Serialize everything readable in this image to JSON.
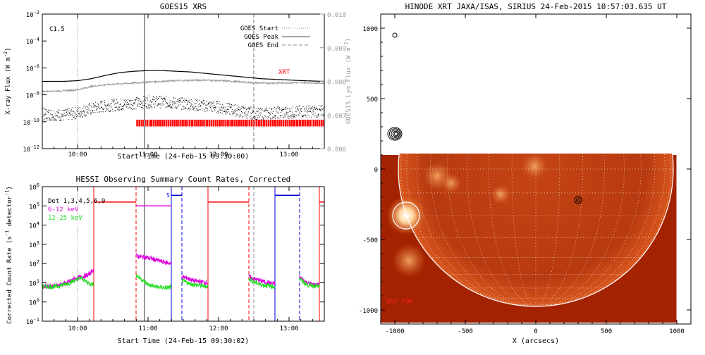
{
  "colors": {
    "red": "#ff0000",
    "magenta": "#dd00dd",
    "green": "#22dd22",
    "blue": "#0000dd",
    "black": "#000000",
    "gray": "#999999",
    "sun_dark": "#a32200",
    "sun_mid": "#c8400e",
    "sun_bright": "#ffe0b0"
  },
  "chart_data": [
    {
      "type": "line",
      "title": "GOES15 XRS",
      "xlabel": "Start Time (24-Feb-15 09:30:00)",
      "ylabel": "X-ray Flux (W m",
      "ylabel_sup": "-2",
      "ylabel_close": ")",
      "ylabel_right": "GOES15 Lyα Flux (W m",
      "ylabel_right_sup": "-2",
      "ylabel_right_close": ")",
      "flare_class": "C1.5",
      "x_ticks": [
        "10:00",
        "11:00",
        "12:00",
        "13:00"
      ],
      "x_tick_hours": [
        10,
        11,
        12,
        13
      ],
      "xlim_hours": [
        9.5,
        13.5
      ],
      "y_ticks_exp": [
        "-2",
        "-4",
        "-6",
        "-8",
        "-10",
        "-12"
      ],
      "y_ticks_base": "10",
      "ylim_log10": [
        -12,
        -2
      ],
      "y_right_ticks": [
        "0.010",
        "0.009",
        "0.008",
        "0.007",
        "0.006"
      ],
      "y_right_lim": [
        0.006,
        0.01
      ],
      "legend": [
        {
          "label": "GOES Start",
          "style": "dotted"
        },
        {
          "label": "GOES Peak",
          "style": "solid"
        },
        {
          "label": "GOES End",
          "style": "dashed"
        }
      ],
      "legend_position": "top-right",
      "goes_start_hour": 10.0,
      "goes_peak_hour": 10.95,
      "goes_end_hour": 12.5,
      "xrt_label": "XRT",
      "xrt_coverage_hours": [
        10.83,
        13.5
      ],
      "series": [
        {
          "name": "1-8 Å (black)",
          "x": [
            9.5,
            9.8,
            10.0,
            10.2,
            10.4,
            10.6,
            10.8,
            11.0,
            11.2,
            11.4,
            11.6,
            11.8,
            12.0,
            12.2,
            12.4,
            12.6,
            12.8,
            13.0,
            13.2,
            13.5
          ],
          "log10_values": [
            -7.0,
            -7.0,
            -6.95,
            -6.8,
            -6.55,
            -6.35,
            -6.25,
            -6.2,
            -6.2,
            -6.25,
            -6.3,
            -6.4,
            -6.5,
            -6.6,
            -6.7,
            -6.8,
            -6.85,
            -6.9,
            -6.95,
            -7.0
          ]
        },
        {
          "name": "0.5-4 Å (black noisy)",
          "x": [
            9.5,
            9.8,
            10.0,
            10.2,
            10.4,
            10.6,
            10.8,
            11.0,
            11.2,
            11.4,
            11.6,
            11.8,
            12.0,
            12.2,
            12.4,
            12.6,
            12.8,
            13.0,
            13.2,
            13.5
          ],
          "log10_values": [
            -9.4,
            -9.5,
            -9.3,
            -9.0,
            -8.8,
            -8.7,
            -8.6,
            -8.5,
            -8.5,
            -8.6,
            -8.7,
            -8.8,
            -8.9,
            -9.1,
            -9.3,
            -9.4,
            -9.3,
            -9.3,
            -9.2,
            -9.2
          ]
        },
        {
          "name": "Lyα (gray)",
          "x": [
            9.5,
            9.8,
            10.0,
            10.2,
            10.4,
            10.6,
            10.8,
            11.0,
            11.2,
            11.4,
            11.6,
            11.8,
            12.0,
            12.2,
            12.4,
            12.6,
            12.8,
            13.0,
            13.2,
            13.5
          ],
          "values": [
            0.0077,
            0.00772,
            0.00775,
            0.00785,
            0.0079,
            0.00793,
            0.00795,
            0.00798,
            0.008,
            0.00802,
            0.00803,
            0.00804,
            0.00802,
            0.008,
            0.00797,
            0.00795,
            0.00795,
            0.00796,
            0.00796,
            0.00795
          ]
        }
      ]
    },
    {
      "type": "line",
      "title": "HESSI Observing Summary Count Rates, Corrected",
      "xlabel": "Start Time (24-Feb-15 09:30:02)",
      "ylabel": "Corrected Count Rate (s",
      "ylabel_sup": "-1",
      "ylabel_mid": " detector",
      "ylabel_sup2": "-1",
      "ylabel_close": ")",
      "x_ticks": [
        "10:00",
        "11:00",
        "12:00",
        "13:00"
      ],
      "x_tick_hours": [
        10,
        11,
        12,
        13
      ],
      "xlim_hours": [
        9.5,
        13.5
      ],
      "y_ticks_exp": [
        "6",
        "5",
        "4",
        "3",
        "2",
        "1",
        "0",
        "-1"
      ],
      "y_ticks_base": "10",
      "ylim_log10": [
        -1,
        6
      ],
      "legend": [
        {
          "label": "Det 1,3,4,5,6,9",
          "color": "black"
        },
        {
          "label": "6-12 keV",
          "color": "magenta"
        },
        {
          "label": "12-25 keV",
          "color": "green"
        }
      ],
      "legend_position": "top-left",
      "saa_label": "S",
      "goes_start_hour": 10.0,
      "goes_peak_hour": 10.95,
      "goes_end_hour": 12.5,
      "night_starts": [
        10.23,
        11.85,
        13.43
      ],
      "night_ends": [
        10.83,
        12.43
      ],
      "saa_starts": [
        11.33,
        12.8
      ],
      "saa_ends": [
        11.48,
        13.15
      ],
      "attenuator_red": [
        [
          10.23,
          10.83
        ],
        [
          11.85,
          12.43
        ],
        [
          13.43,
          13.5
        ]
      ],
      "attenuator_magenta": [
        [
          10.83,
          11.33
        ]
      ],
      "attenuator_blue": [
        [
          11.33,
          11.48
        ],
        [
          12.8,
          13.15
        ]
      ],
      "series": [
        {
          "name": "6-12 keV",
          "x": [
            9.5,
            9.7,
            9.85,
            9.95,
            10.05,
            10.15,
            10.23
          ],
          "log10_values": [
            0.8,
            0.85,
            1.0,
            1.2,
            1.3,
            1.4,
            1.7
          ],
          "segments": [
            {
              "x": [
                9.5,
                9.7,
                9.85,
                9.95,
                10.05,
                10.15,
                10.23
              ],
              "log10_values": [
                0.8,
                0.85,
                1.0,
                1.2,
                1.3,
                1.4,
                1.7
              ]
            },
            {
              "x": [
                10.83,
                10.9,
                11.0,
                11.1,
                11.2,
                11.33
              ],
              "log10_values": [
                2.4,
                2.35,
                2.3,
                2.2,
                2.1,
                2.0
              ]
            },
            {
              "x": [
                11.48,
                11.55,
                11.65,
                11.75,
                11.85
              ],
              "log10_values": [
                1.3,
                1.25,
                1.1,
                1.05,
                1.0
              ]
            },
            {
              "x": [
                12.43,
                12.5,
                12.6,
                12.7,
                12.8
              ],
              "log10_values": [
                1.3,
                1.2,
                1.1,
                1.0,
                0.95
              ]
            },
            {
              "x": [
                13.15,
                13.25,
                13.35,
                13.43
              ],
              "log10_values": [
                1.3,
                1.0,
                0.9,
                0.9
              ]
            }
          ]
        },
        {
          "name": "12-25 keV",
          "segments": [
            {
              "x": [
                9.5,
                9.7,
                9.85,
                9.95,
                10.05,
                10.15,
                10.23
              ],
              "log10_values": [
                0.8,
                0.8,
                0.95,
                1.1,
                1.25,
                1.0,
                0.9
              ]
            },
            {
              "x": [
                10.83,
                10.9,
                11.0,
                11.1,
                11.2,
                11.33
              ],
              "log10_values": [
                1.4,
                1.2,
                0.9,
                0.8,
                0.75,
                0.75
              ]
            },
            {
              "x": [
                11.48,
                11.55,
                11.65,
                11.75,
                11.85
              ],
              "log10_values": [
                1.1,
                1.0,
                0.9,
                0.85,
                0.8
              ]
            },
            {
              "x": [
                12.43,
                12.5,
                12.6,
                12.7,
                12.8
              ],
              "log10_values": [
                1.2,
                1.05,
                0.9,
                0.85,
                0.8
              ]
            },
            {
              "x": [
                13.15,
                13.25,
                13.35,
                13.43
              ],
              "log10_values": [
                1.2,
                0.9,
                0.85,
                0.8
              ]
            }
          ]
        }
      ]
    },
    {
      "type": "heatmap",
      "title": "HINODE XRT JAXA/ISAS, SIRIUS 24-Feb-2015 10:57:03.635 UT",
      "xlabel": "X (arcsecs)",
      "x_ticks": [
        "-1000",
        "-500",
        "0",
        "500",
        "1000"
      ],
      "x_tick_values": [
        -1000,
        -500,
        0,
        500,
        1000
      ],
      "y_ticks": [
        "1000",
        "500",
        "0",
        "-500",
        "-1000"
      ],
      "y_tick_values": [
        1000,
        500,
        0,
        -500,
        -1000
      ],
      "xlim": [
        -1100,
        1100
      ],
      "ylim": [
        -1100,
        1100
      ],
      "fov_label": "XRT FOV",
      "image_extent": {
        "x": [
          -1100,
          1000
        ],
        "y": [
          -1100,
          100
        ]
      },
      "solar_radius_arcsec": 975,
      "flare_circle": {
        "x": -920,
        "y": -330,
        "r": 95
      },
      "marker_circle": {
        "x": 300,
        "y": -220,
        "r": 25
      },
      "contours_center": {
        "x": -1000,
        "y": 250
      },
      "small_circle": {
        "x": -1000,
        "y": 950
      }
    }
  ]
}
